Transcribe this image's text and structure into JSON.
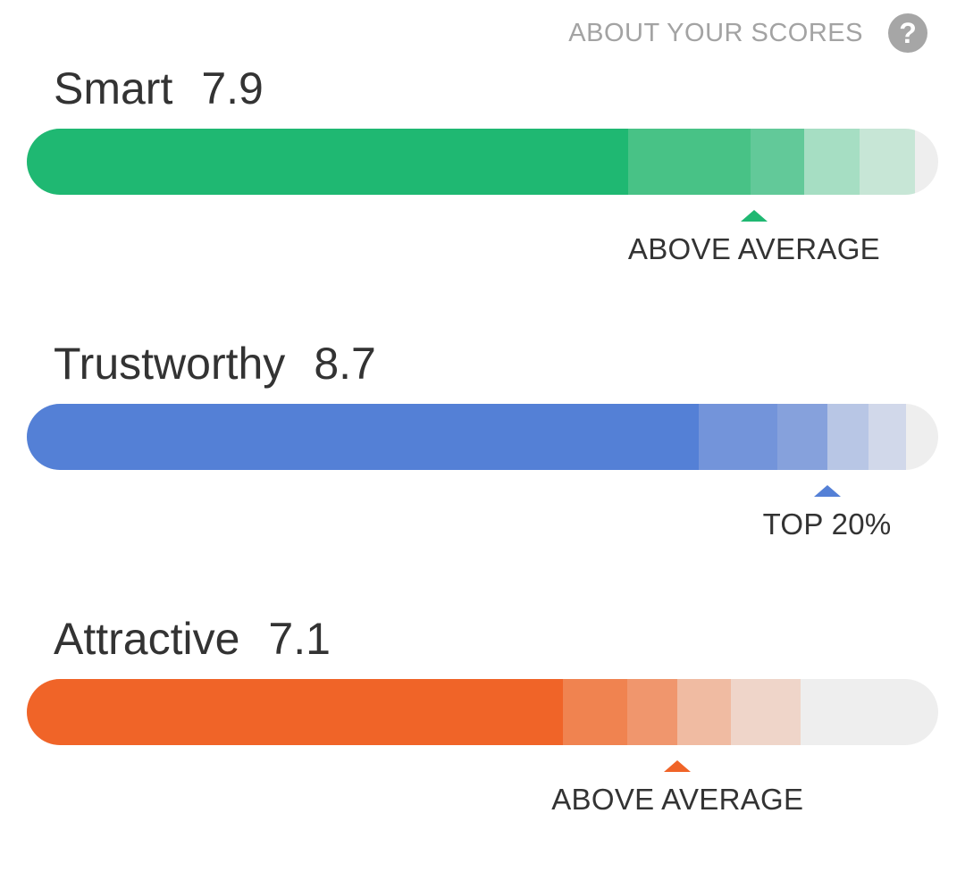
{
  "header": {
    "about_label": "ABOUT YOUR SCORES",
    "help_glyph": "?",
    "help_icon": "question-circle-icon"
  },
  "scores": [
    {
      "name": "Smart",
      "value": "7.9",
      "bucket_label": "ABOVE AVERAGE",
      "bar_fill_fraction": 0.66,
      "bands_end_fraction": [
        0.794,
        0.853,
        0.914,
        0.975
      ],
      "marker_fraction": 0.798,
      "colors": {
        "fill": "#1fb872",
        "bands": [
          "#48c286",
          "#62c999",
          "#a6dec3",
          "#c7e6d6"
        ],
        "track": "#eeeeee",
        "marker": "#1fb872"
      }
    },
    {
      "name": "Trustworthy",
      "value": "8.7",
      "bucket_label": "TOP 20%",
      "bar_fill_fraction": 0.737,
      "bands_end_fraction": [
        0.824,
        0.878,
        0.924,
        0.965
      ],
      "marker_fraction": 0.878,
      "colors": {
        "fill": "#5480d6",
        "bands": [
          "#7394da",
          "#86a1dc",
          "#b8c6e5",
          "#d1d8ea"
        ],
        "track": "#eeeeee",
        "marker": "#5480d6"
      }
    },
    {
      "name": "Attractive",
      "value": "7.1",
      "bucket_label": "ABOVE AVERAGE",
      "bar_fill_fraction": 0.588,
      "bands_end_fraction": [
        0.659,
        0.714,
        0.773,
        0.849
      ],
      "marker_fraction": 0.714,
      "colors": {
        "fill": "#f06428",
        "bands": [
          "#f08350",
          "#f0966d",
          "#f0bba2",
          "#efd5c9"
        ],
        "track": "#eeeeee",
        "marker": "#f06428"
      }
    }
  ]
}
